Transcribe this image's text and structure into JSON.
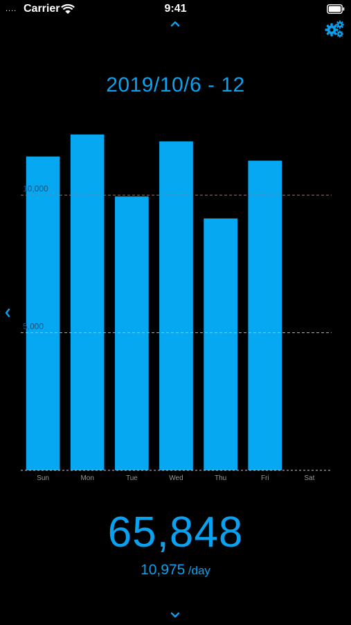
{
  "status_bar": {
    "signal": "....",
    "carrier": "Carrier",
    "time": "9:41"
  },
  "icons": {
    "prev_period": "chevron-up-icon",
    "next_period": "chevron-down-icon",
    "side_prev": "chevron-left-icon",
    "settings": "gears-icon",
    "wifi": "wifi-icon",
    "battery": "battery-icon"
  },
  "header": {
    "date_range": "2019/10/6 - 12"
  },
  "chart_data": {
    "type": "bar",
    "categories": [
      "Sun",
      "Mon",
      "Tue",
      "Wed",
      "Thu",
      "Fri",
      "Sat"
    ],
    "values": [
      11400,
      12200,
      9950,
      11950,
      9150,
      11250,
      null
    ],
    "ylim": [
      0,
      12550
    ],
    "reference_lines": [
      {
        "value": 10000,
        "label": "10,000",
        "color": "#b86a4a"
      },
      {
        "value": 5000,
        "label": "5,000",
        "color": "#b8b8b8"
      }
    ],
    "bar_color": "#07a8f2",
    "xlabel": "",
    "ylabel": ""
  },
  "summary": {
    "total": "65,848",
    "average": "10,975",
    "average_unit": "/day"
  },
  "colors": {
    "accent": "#0aa2f0",
    "background": "#000000"
  }
}
